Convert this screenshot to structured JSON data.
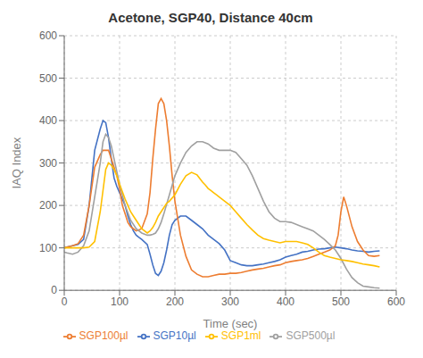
{
  "chart_data": {
    "type": "line",
    "title": "Acetone, SGP40, Distance 40cm",
    "xlabel": "Time (sec)",
    "ylabel": "IAQ Index",
    "xlim": [
      0,
      600
    ],
    "ylim": [
      0,
      600
    ],
    "xticks": [
      0,
      100,
      200,
      300,
      400,
      500,
      600
    ],
    "yticks": [
      0,
      100,
      200,
      300,
      400,
      500,
      600
    ],
    "grid": true,
    "legend": "bottom",
    "series": [
      {
        "name": "SGP10µl",
        "color": "#4472C4",
        "x": [
          0,
          5,
          15,
          25,
          35,
          45,
          55,
          65,
          70,
          75,
          80,
          85,
          90,
          95,
          100,
          105,
          110,
          115,
          120,
          125,
          130,
          135,
          140,
          150,
          155,
          160,
          165,
          170,
          175,
          180,
          185,
          190,
          195,
          200,
          210,
          220,
          230,
          240,
          250,
          260,
          270,
          280,
          290,
          300,
          310,
          320,
          330,
          340,
          350,
          360,
          370,
          380,
          390,
          400,
          410,
          420,
          430,
          440,
          450,
          460,
          470,
          480,
          490,
          500,
          510,
          520,
          530,
          540,
          550,
          560,
          570
        ],
        "values": [
          100,
          102,
          105,
          108,
          120,
          200,
          330,
          380,
          400,
          395,
          360,
          310,
          265,
          245,
          230,
          215,
          200,
          175,
          155,
          140,
          130,
          125,
          120,
          108,
          85,
          60,
          40,
          35,
          45,
          65,
          95,
          130,
          155,
          165,
          175,
          175,
          165,
          155,
          145,
          130,
          120,
          110,
          95,
          70,
          65,
          60,
          58,
          58,
          60,
          62,
          65,
          68,
          72,
          78,
          82,
          85,
          90,
          92,
          95,
          97,
          98,
          100,
          102,
          100,
          98,
          95,
          93,
          92,
          90,
          92,
          93
        ]
      },
      {
        "name": "SGP100µl",
        "color": "#ED7D31",
        "x": [
          0,
          5,
          15,
          25,
          35,
          45,
          55,
          65,
          70,
          75,
          80,
          85,
          90,
          95,
          100,
          105,
          110,
          115,
          120,
          125,
          130,
          140,
          150,
          155,
          160,
          165,
          170,
          175,
          180,
          185,
          190,
          195,
          200,
          210,
          220,
          230,
          240,
          250,
          260,
          270,
          280,
          290,
          300,
          310,
          320,
          330,
          340,
          350,
          360,
          370,
          380,
          390,
          400,
          410,
          420,
          430,
          440,
          450,
          460,
          470,
          480,
          490,
          495,
          500,
          505,
          510,
          520,
          530,
          540,
          550,
          560,
          570
        ],
        "values": [
          100,
          102,
          105,
          110,
          130,
          200,
          290,
          320,
          330,
          330,
          330,
          310,
          290,
          270,
          240,
          200,
          180,
          160,
          150,
          145,
          140,
          145,
          180,
          230,
          310,
          380,
          440,
          452,
          440,
          400,
          340,
          270,
          210,
          130,
          80,
          48,
          38,
          32,
          32,
          35,
          38,
          38,
          40,
          40,
          42,
          45,
          48,
          50,
          52,
          55,
          58,
          60,
          65,
          68,
          70,
          72,
          75,
          80,
          85,
          90,
          95,
          105,
          130,
          185,
          220,
          200,
          150,
          115,
          95,
          82,
          80,
          82
        ]
      },
      {
        "name": "SGP500µl",
        "color": "#A0A0A0",
        "x": [
          0,
          5,
          15,
          25,
          35,
          45,
          55,
          65,
          70,
          75,
          80,
          85,
          90,
          95,
          100,
          110,
          120,
          130,
          140,
          150,
          155,
          160,
          165,
          170,
          175,
          180,
          190,
          200,
          210,
          220,
          230,
          240,
          250,
          260,
          270,
          280,
          290,
          300,
          310,
          320,
          330,
          340,
          350,
          360,
          370,
          380,
          390,
          400,
          410,
          420,
          430,
          440,
          450,
          460,
          470,
          480,
          490,
          500,
          510,
          520,
          530,
          540,
          550,
          560,
          570
        ],
        "values": [
          90,
          88,
          85,
          90,
          105,
          140,
          220,
          300,
          350,
          368,
          360,
          340,
          310,
          280,
          250,
          200,
          165,
          145,
          135,
          130,
          130,
          132,
          135,
          145,
          160,
          180,
          225,
          270,
          300,
          325,
          340,
          350,
          350,
          345,
          335,
          330,
          330,
          330,
          325,
          310,
          295,
          270,
          240,
          210,
          185,
          170,
          162,
          162,
          160,
          155,
          150,
          145,
          140,
          130,
          120,
          108,
          95,
          75,
          50,
          30,
          18,
          10,
          8,
          6,
          5
        ]
      },
      {
        "name": "SGP1ml",
        "color": "#FFC000",
        "x": [
          0,
          5,
          15,
          25,
          35,
          45,
          55,
          65,
          70,
          75,
          80,
          85,
          90,
          95,
          100,
          110,
          115,
          120,
          125,
          130,
          140,
          150,
          155,
          160,
          165,
          170,
          175,
          180,
          185,
          190,
          200,
          210,
          220,
          230,
          240,
          250,
          255,
          260,
          265,
          270,
          275,
          280,
          290,
          300,
          310,
          320,
          330,
          340,
          350,
          360,
          370,
          380,
          390,
          400,
          410,
          420,
          430,
          440,
          450,
          460,
          470,
          480,
          490,
          500,
          510,
          520,
          530,
          540,
          550,
          560,
          570
        ],
        "values": [
          100,
          100,
          100,
          100,
          100,
          102,
          115,
          185,
          235,
          285,
          300,
          295,
          285,
          270,
          250,
          215,
          200,
          185,
          175,
          165,
          145,
          135,
          140,
          148,
          160,
          175,
          185,
          195,
          205,
          210,
          225,
          250,
          270,
          278,
          272,
          255,
          248,
          240,
          235,
          230,
          225,
          220,
          210,
          200,
          185,
          170,
          155,
          142,
          130,
          122,
          118,
          115,
          112,
          115,
          115,
          115,
          112,
          108,
          100,
          90,
          82,
          78,
          75,
          72,
          70,
          68,
          65,
          62,
          60,
          58,
          55
        ]
      }
    ]
  }
}
